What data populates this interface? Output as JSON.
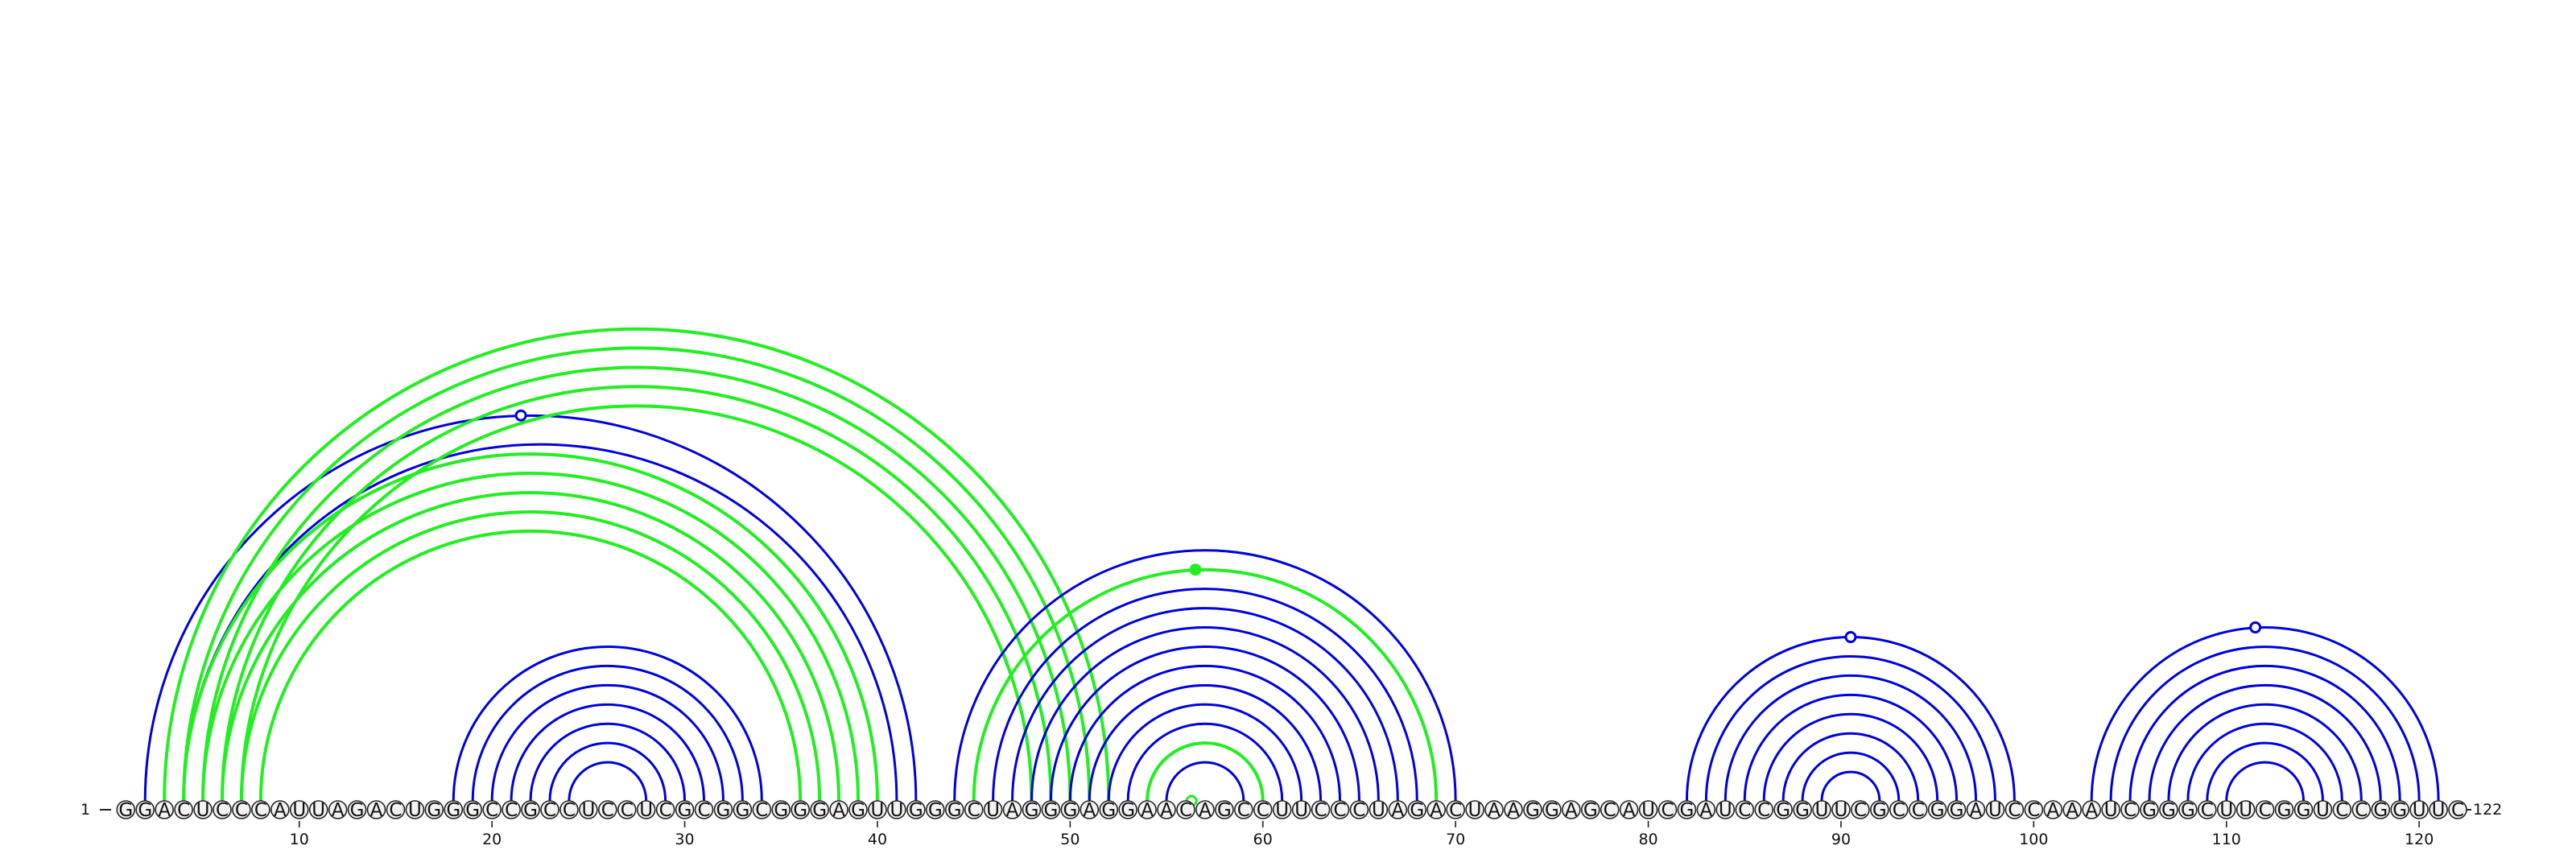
{
  "sequence": "GGACUCCCAUUAGACUGGGCCGCCUCCUCGCGGCGGGAGUUGGGCUAGGGAGGAACAGCCUUCCCUAGACUAAGGAGCAUCGAUCCGGUUCGCCGGAUCCAAAUCGGGCUUCGGUCCGGUUC",
  "start_label": "1",
  "end_label": "122",
  "tick_labels": [
    "10",
    "20",
    "30",
    "40",
    "50",
    "60",
    "70",
    "80",
    "90",
    "100",
    "110",
    "120"
  ],
  "colors": {
    "predicted_pair": "#0000dd",
    "reference_pair": "#22ee22",
    "backbone": "#222222",
    "nucleotide_fill": "#f2f2f2"
  },
  "arc_groups": [
    {
      "kind": "predicted",
      "pairs": [
        [
          2,
          42
        ],
        [
          4,
          41
        ]
      ]
    },
    {
      "kind": "predicted",
      "pairs": [
        [
          18,
          34
        ],
        [
          19,
          33
        ],
        [
          20,
          32
        ],
        [
          21,
          31
        ],
        [
          22,
          30
        ],
        [
          23,
          29
        ],
        [
          24,
          28
        ]
      ]
    },
    {
      "kind": "reference",
      "pairs": [
        [
          4,
          40
        ],
        [
          5,
          39
        ],
        [
          6,
          38
        ],
        [
          7,
          37
        ],
        [
          8,
          36
        ]
      ]
    },
    {
      "kind": "reference",
      "pairs": [
        [
          3,
          52
        ],
        [
          4,
          51
        ],
        [
          5,
          50
        ],
        [
          6,
          49
        ],
        [
          7,
          48
        ]
      ]
    },
    {
      "kind": "predicted",
      "pairs": [
        [
          44,
          70
        ],
        [
          45,
          69
        ],
        [
          46,
          68
        ],
        [
          47,
          67
        ],
        [
          48,
          66
        ],
        [
          49,
          65
        ],
        [
          50,
          64
        ],
        [
          51,
          63
        ],
        [
          52,
          62
        ],
        [
          53,
          61
        ],
        [
          54,
          60
        ],
        [
          55,
          59
        ]
      ]
    },
    {
      "kind": "reference",
      "pairs": [
        [
          45,
          69
        ],
        [
          54,
          60
        ]
      ]
    },
    {
      "kind": "predicted",
      "pairs": [
        [
          82,
          99
        ],
        [
          83,
          98
        ],
        [
          84,
          97
        ],
        [
          85,
          96
        ],
        [
          86,
          95
        ],
        [
          87,
          94
        ],
        [
          88,
          93
        ],
        [
          89,
          92
        ]
      ]
    },
    {
      "kind": "predicted",
      "pairs": [
        [
          103,
          121
        ],
        [
          104,
          120
        ],
        [
          105,
          119
        ],
        [
          106,
          118
        ],
        [
          107,
          117
        ],
        [
          108,
          116
        ],
        [
          109,
          115
        ],
        [
          110,
          114
        ]
      ]
    }
  ],
  "pair_markers": [
    {
      "kind": "predicted",
      "pos": 21.5,
      "fill": "open"
    },
    {
      "kind": "reference",
      "pos": 56.5,
      "fill": "solid"
    },
    {
      "kind": "reference",
      "pos": 56.3,
      "fill": "open"
    },
    {
      "kind": "predicted",
      "pos": 90.5,
      "fill": "open"
    },
    {
      "kind": "predicted",
      "pos": 111.5,
      "fill": "open"
    }
  ]
}
